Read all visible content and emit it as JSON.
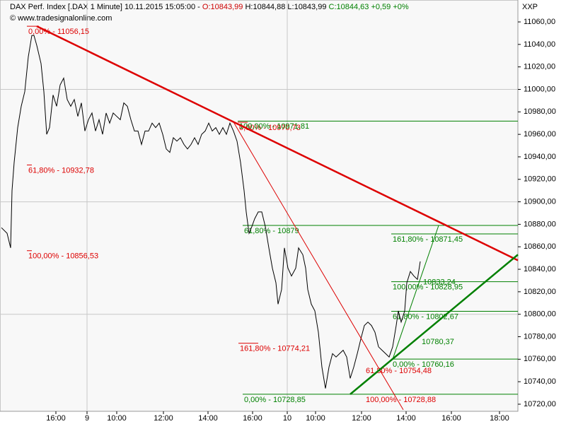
{
  "chart_data": {
    "type": "line",
    "header": [
      {
        "text": "DAX Perf. Index [.DAX  1 Minute] 10.11.2015 15:05:00 - ",
        "color": "#000000"
      },
      {
        "text": "O:10843,99",
        "color": "#cc0000"
      },
      {
        "text": " H:10844,88 L:10843,99 ",
        "color": "#000000"
      },
      {
        "text": "C:10844,63 +0,59 +0%",
        "color": "#008000"
      }
    ],
    "copyright": "© www.tradesignalonline.com",
    "axis_label": "XXP",
    "xlim": [
      0,
      732
    ],
    "ylim": [
      10713.7,
      11079.5
    ],
    "xticks": [
      {
        "value": 79,
        "label": "16:00"
      },
      {
        "value": 123,
        "label": "9"
      },
      {
        "value": 165,
        "label": "10:00"
      },
      {
        "value": 231,
        "label": "12:00"
      },
      {
        "value": 294,
        "label": "14:00"
      },
      {
        "value": 357,
        "label": "16:00"
      },
      {
        "value": 406,
        "label": "10"
      },
      {
        "value": 446,
        "label": "10:00"
      },
      {
        "value": 511,
        "label": "12:00"
      },
      {
        "value": 574,
        "label": "14:00"
      },
      {
        "value": 638,
        "label": "16:00"
      },
      {
        "value": 706,
        "label": "18:00"
      }
    ],
    "yticks": [
      {
        "value": 10720,
        "label": "10720,00"
      },
      {
        "value": 10740,
        "label": "10740,00"
      },
      {
        "value": 10760,
        "label": "10760,00"
      },
      {
        "value": 10780,
        "label": "10780,00"
      },
      {
        "value": 10800,
        "label": "10800,00"
      },
      {
        "value": 10820,
        "label": "10820,00"
      },
      {
        "value": 10840,
        "label": "10840,00"
      },
      {
        "value": 10860,
        "label": "10860,00"
      },
      {
        "value": 10880,
        "label": "10880,00"
      },
      {
        "value": 10900,
        "label": "10900,00"
      },
      {
        "value": 10920,
        "label": "10920,00"
      },
      {
        "value": 10940,
        "label": "10940,00"
      },
      {
        "value": 10960,
        "label": "10960,00"
      },
      {
        "value": 10980,
        "label": "10980,00"
      },
      {
        "value": 11000,
        "label": "11000,00"
      },
      {
        "value": 11020,
        "label": "11020,00"
      },
      {
        "value": 11040,
        "label": "11040,00"
      },
      {
        "value": 11060,
        "label": "11060,00"
      }
    ],
    "hgrid": [
      11000,
      10900,
      10800
    ],
    "vgrid": [
      123,
      406
    ],
    "series": [
      {
        "color": "#000000",
        "x": [
          2,
          10,
          15,
          17,
          20,
          25,
          30,
          35,
          40,
          45,
          48,
          52,
          58,
          62,
          66,
          70,
          75,
          80,
          85,
          90,
          95,
          100,
          105,
          110,
          115,
          120,
          125,
          130,
          135,
          140,
          145,
          150,
          155,
          160,
          165,
          170,
          175,
          180,
          185,
          190,
          195,
          200,
          205,
          210,
          215,
          220,
          225,
          230,
          235,
          240,
          245,
          250,
          255,
          260,
          265,
          270,
          275,
          280,
          285,
          290,
          295,
          300,
          305,
          310,
          315,
          320,
          325,
          330,
          335,
          340,
          345,
          348,
          352,
          356,
          360,
          365,
          370,
          375,
          380,
          385,
          390,
          393,
          398,
          402,
          407,
          412,
          418,
          422,
          428,
          432,
          435,
          440,
          445,
          450,
          455,
          460,
          465,
          470,
          475,
          480,
          485,
          490,
          495,
          500,
          505,
          510,
          515,
          520,
          525,
          530,
          535,
          540,
          545,
          550,
          555,
          560,
          563,
          567,
          572,
          575,
          580,
          585,
          590,
          594
        ],
        "values": [
          10877,
          10872,
          10859,
          10910,
          10935,
          10966,
          10985,
          10998,
          11029,
          11048,
          11048,
          11039,
          11023,
          10998,
          10960,
          10966,
          10995,
          10985,
          11004,
          11010,
          10991,
          10985,
          10991,
          10976,
          10988,
          10963,
          10973,
          10979,
          10963,
          10973,
          10960,
          10979,
          10970,
          10979,
          10976,
          10973,
          10988,
          10985,
          10973,
          10963,
          10963,
          10951,
          10963,
          10963,
          10970,
          10966,
          10970,
          10960,
          10947,
          10944,
          10957,
          10954,
          10957,
          10951,
          10947,
          10951,
          10957,
          10951,
          10960,
          10963,
          10970,
          10963,
          10966,
          10960,
          10966,
          10960,
          10970,
          10963,
          10954,
          10935,
          10910,
          10891,
          10872,
          10878,
          10885,
          10891,
          10891,
          10878,
          10859,
          10841,
          10828,
          10809,
          10822,
          10859,
          10841,
          10834,
          10841,
          10859,
          10853,
          10841,
          10822,
          10809,
          10803,
          10784,
          10753,
          10734,
          10753,
          10765,
          10762,
          10765,
          10768,
          10762,
          10743,
          10753,
          10765,
          10778,
          10790,
          10793,
          10790,
          10784,
          10771,
          10768,
          10765,
          10762,
          10771,
          10790,
          10803,
          10793,
          10803,
          10828,
          10838,
          10834,
          10831,
          10847
        ]
      }
    ],
    "trendlines": [
      {
        "color": "#dd0000",
        "width": 2.5,
        "x": [
          52,
          732
        ],
        "y": [
          11056.15,
          10848
        ]
      },
      {
        "color": "#dd0000",
        "width": 1,
        "x": [
          330,
          570
        ],
        "y": [
          10971,
          10715
        ]
      },
      {
        "color": "#008000",
        "width": 2.5,
        "x": [
          495,
          732
        ],
        "y": [
          10728.85,
          10853
        ]
      },
      {
        "color": "#008000",
        "width": 1,
        "x": [
          555,
          620
        ],
        "y": [
          10760,
          10879
        ]
      }
    ],
    "levels": [
      {
        "text": "0,00% - 11056,15",
        "level": 11056.15,
        "x1": 38,
        "x2": 55,
        "color": "#dd0000"
      },
      {
        "text": "61,80% - 10932,78",
        "level": 10932.78,
        "x1": 38,
        "x2": 45,
        "color": "#dd0000"
      },
      {
        "text": "100,00% - 10856,53",
        "level": 10856.53,
        "x1": 38,
        "x2": 45,
        "color": "#dd0000"
      },
      {
        "text": "0,00% - 10970,73",
        "level": 10970.73,
        "x1": 336,
        "x2": 350,
        "color": "#dd0000"
      },
      {
        "text": "100,00% - 10971,81",
        "level": 10971.81,
        "x1": 336,
        "x2": 732,
        "color": "#008000"
      },
      {
        "text": "61,80% - 10879",
        "level": 10879,
        "x1": 343,
        "x2": 732,
        "color": "#008000"
      },
      {
        "text": "161,80% - 10774,21",
        "level": 10774.21,
        "x1": 337,
        "x2": 365,
        "color": "#dd0000"
      },
      {
        "text": "0,00% - 10728,85",
        "level": 10728.85,
        "x1": 343,
        "x2": 732,
        "color": "#008000"
      },
      {
        "text": "161,80% - 10871,45",
        "level": 10871.45,
        "x1": 553,
        "x2": 732,
        "color": "#008000"
      },
      {
        "text": "100,00% - 10828,95",
        "level": 10828.95,
        "x1": 553,
        "x2": 732,
        "color": "#008000"
      },
      {
        "text": "10833,24",
        "level": 10833.24,
        "x1": 596,
        "x2": 596,
        "color": "#008000"
      },
      {
        "text": "61,80% - 10802,67",
        "level": 10802.67,
        "x1": 553,
        "x2": 732,
        "color": "#008000"
      },
      {
        "text": "10780,37",
        "level": 10780.37,
        "x1": 594,
        "x2": 594,
        "color": "#008000"
      },
      {
        "text": "0,00% - 10760,16",
        "level": 10760.16,
        "x1": 553,
        "x2": 732,
        "color": "#008000"
      },
      {
        "text": "61,80% - 10754,48",
        "level": 10754.48,
        "x1": 515,
        "x2": 515,
        "color": "#dd0000"
      },
      {
        "text": "100,00% - 10728,88",
        "level": 10728.88,
        "x1": 515,
        "x2": 515,
        "color": "#dd0000"
      }
    ]
  }
}
